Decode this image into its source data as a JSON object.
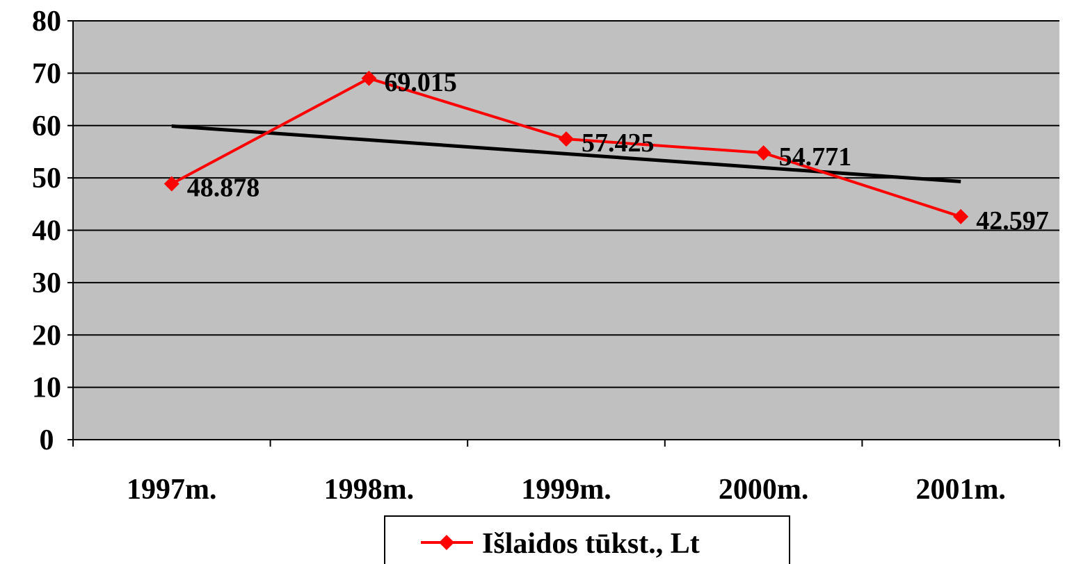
{
  "chart_data": {
    "type": "line",
    "categories": [
      "1997m.",
      "1998m.",
      "1999m.",
      "2000m.",
      "2001m."
    ],
    "series": [
      {
        "name": "Išlaidos tūkst., Lt",
        "values": [
          48.878,
          69.015,
          57.425,
          54.771,
          42.597
        ],
        "labels": [
          "48.878",
          "69.015",
          "57.425",
          "54.771",
          "42.597"
        ],
        "color": "#ff0000",
        "marker": "diamond"
      }
    ],
    "trendline": {
      "type": "linear",
      "color": "#000000",
      "start_value": 59.9,
      "end_value": 49.3
    },
    "ylim": [
      0,
      80
    ],
    "yticks": [
      "0",
      "10",
      "20",
      "30",
      "40",
      "50",
      "60",
      "70",
      "80"
    ],
    "grid": true,
    "plot_background": "#c0c0c0",
    "legend_position": "bottom"
  }
}
